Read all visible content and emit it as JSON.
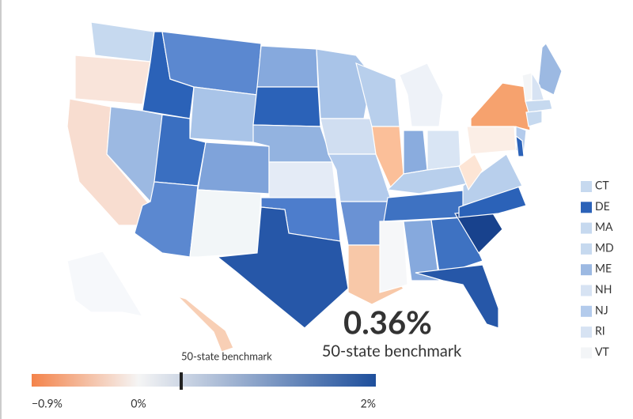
{
  "benchmark": {
    "value": 0.36,
    "value_label": "0.36%",
    "caption": "50-state benchmark",
    "marker_label": "50-state benchmark"
  },
  "colorbar": {
    "lim": [
      -0.9,
      2
    ],
    "colors": [
      "#f4834a",
      "#f5f5f5",
      "#1e4f9c"
    ],
    "ticks": [
      {
        "value": -0.9,
        "label": "−0.9%"
      },
      {
        "value": 0,
        "label": "0%"
      },
      {
        "value": 2,
        "label": "2%"
      }
    ]
  },
  "small_states": [
    {
      "label": "CT",
      "color": "#c6d9ef"
    },
    {
      "label": "DE",
      "color": "#2b62b8"
    },
    {
      "label": "MA",
      "color": "#c6d9ef"
    },
    {
      "label": "MD",
      "color": "#c6d9ef"
    },
    {
      "label": "ME",
      "color": "#9cb9e2"
    },
    {
      "label": "NH",
      "color": "#d7e3f3"
    },
    {
      "label": "NJ",
      "color": "#b3cbec"
    },
    {
      "label": "RI",
      "color": "#d7e3f3"
    },
    {
      "label": "VT",
      "color": "#f3f5f7"
    }
  ]
}
